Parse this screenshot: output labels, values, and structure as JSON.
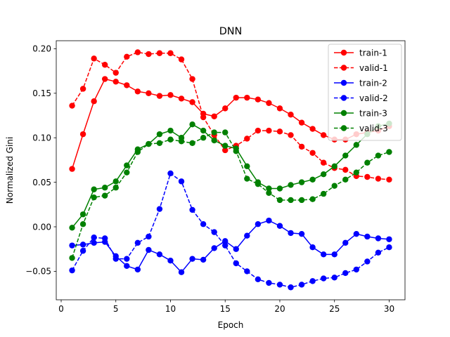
{
  "chart_data": {
    "type": "line",
    "title": "DNN",
    "xlabel": "Epoch",
    "ylabel": "Normalized Gini",
    "xlim": [
      -0.45,
      31.45
    ],
    "ylim": [
      -0.082,
      0.209
    ],
    "xticks": [
      0,
      5,
      10,
      15,
      20,
      25,
      30
    ],
    "yticks": [
      -0.05,
      0.0,
      0.05,
      0.1,
      0.15,
      0.2
    ],
    "ytick_labels": [
      "−0.05",
      "0.00",
      "0.05",
      "0.10",
      "0.15",
      "0.20"
    ],
    "xtick_labels": [
      "0",
      "5",
      "10",
      "15",
      "20",
      "25",
      "30"
    ],
    "grid": false,
    "legend_position": "upper right",
    "x": [
      1,
      2,
      3,
      4,
      5,
      6,
      7,
      8,
      9,
      10,
      11,
      12,
      13,
      14,
      15,
      16,
      17,
      18,
      19,
      20,
      21,
      22,
      23,
      24,
      25,
      26,
      27,
      28,
      29,
      30
    ],
    "series": [
      {
        "name": "train-1",
        "color": "#ff0000",
        "dashed": false,
        "values": [
          0.065,
          0.104,
          0.141,
          0.166,
          0.163,
          0.159,
          0.152,
          0.15,
          0.147,
          0.148,
          0.144,
          0.14,
          0.127,
          0.124,
          0.133,
          0.145,
          0.145,
          0.143,
          0.139,
          0.133,
          0.126,
          0.117,
          0.11,
          0.103,
          0.098,
          0.098,
          0.104,
          0.106,
          0.108,
          0.113
        ]
      },
      {
        "name": "valid-1",
        "color": "#ff0000",
        "dashed": true,
        "values": [
          0.136,
          0.155,
          0.189,
          0.182,
          0.173,
          0.191,
          0.196,
          0.194,
          0.195,
          0.195,
          0.188,
          0.166,
          0.123,
          0.103,
          0.086,
          0.091,
          0.099,
          0.108,
          0.108,
          0.107,
          0.103,
          0.09,
          0.083,
          0.072,
          0.066,
          0.064,
          0.057,
          0.056,
          0.054,
          0.053
        ]
      },
      {
        "name": "train-2",
        "color": "#0000ff",
        "dashed": false,
        "values": [
          -0.021,
          -0.02,
          -0.018,
          -0.017,
          -0.033,
          -0.044,
          -0.048,
          -0.026,
          -0.031,
          -0.038,
          -0.051,
          -0.036,
          -0.037,
          -0.024,
          -0.016,
          -0.025,
          -0.01,
          0.003,
          0.007,
          0.001,
          -0.007,
          -0.008,
          -0.023,
          -0.031,
          -0.031,
          -0.018,
          -0.008,
          -0.011,
          -0.013,
          -0.014
        ]
      },
      {
        "name": "valid-2",
        "color": "#0000ff",
        "dashed": true,
        "values": [
          -0.049,
          -0.027,
          -0.012,
          -0.013,
          -0.036,
          -0.036,
          -0.018,
          -0.011,
          0.02,
          0.06,
          0.051,
          0.019,
          0.003,
          -0.006,
          -0.021,
          -0.041,
          -0.05,
          -0.059,
          -0.063,
          -0.065,
          -0.068,
          -0.065,
          -0.061,
          -0.058,
          -0.057,
          -0.052,
          -0.048,
          -0.039,
          -0.029,
          -0.023
        ]
      },
      {
        "name": "train-3",
        "color": "#008000",
        "dashed": false,
        "values": [
          -0.001,
          0.014,
          0.042,
          0.044,
          0.051,
          0.069,
          0.087,
          0.093,
          0.104,
          0.108,
          0.1,
          0.115,
          0.108,
          0.097,
          0.091,
          0.088,
          0.068,
          0.05,
          0.043,
          0.043,
          0.047,
          0.05,
          0.053,
          0.059,
          0.068,
          0.08,
          0.092,
          0.104,
          0.113,
          0.116
        ]
      },
      {
        "name": "valid-3",
        "color": "#008000",
        "dashed": true,
        "values": [
          -0.035,
          0.003,
          0.033,
          0.035,
          0.044,
          0.061,
          0.084,
          0.093,
          0.094,
          0.098,
          0.096,
          0.094,
          0.1,
          0.106,
          0.106,
          0.085,
          0.054,
          0.048,
          0.038,
          0.03,
          0.03,
          0.03,
          0.031,
          0.037,
          0.046,
          0.053,
          0.061,
          0.072,
          0.08,
          0.084
        ]
      }
    ]
  }
}
